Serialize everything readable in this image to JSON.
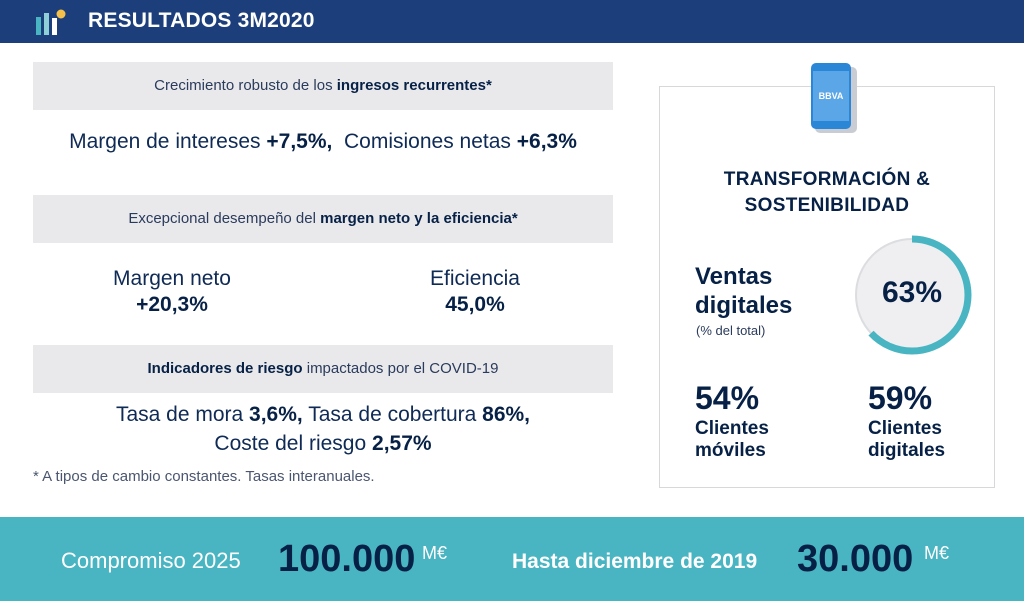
{
  "header": {
    "title": "RESULTADOS 3M2020"
  },
  "section1": {
    "band_prefix": "Crecimiento robusto de los ",
    "band_bold": "ingresos recurrentes*",
    "margin_label": "Margen de intereses ",
    "margin_value": "+7,5%,",
    "fees_label": "Comisiones netas ",
    "fees_value": "+6,3%"
  },
  "section2": {
    "band_prefix": "Excepcional desempeño del ",
    "band_bold": "margen neto y la eficiencia*",
    "net_label": "Margen neto",
    "net_value": "+20,3%",
    "eff_label": "Eficiencia",
    "eff_value": "45,0%"
  },
  "section3": {
    "band_bold": "Indicadores de riesgo",
    "band_suffix": " impactados por el COVID-19",
    "npl_label": "Tasa de mora ",
    "npl_value": "3,6%,",
    "coverage_label": " Tasa de cobertura ",
    "coverage_value": "86%,",
    "cor_label": "Coste del riesgo ",
    "cor_value": "2,57%"
  },
  "footnote": "* A tipos de cambio constantes. Tasas interanuales.",
  "panel": {
    "phone_brand": "BBVA",
    "title_line1": "TRANSFORMACIÓN &",
    "title_line2": "SOSTENIBILIDAD",
    "ventas_line1": "Ventas",
    "ventas_line2": "digitales",
    "ventas_sub": "(% del total)",
    "ventas_value": "63%",
    "ventas_fraction": 0.63,
    "mobile_value": "54%",
    "mobile_line1": "Clientes",
    "mobile_line2": "móviles",
    "digital_value": "59%",
    "digital_line1": "Clientes",
    "digital_line2": "digitales"
  },
  "footer": {
    "commit_label": "Compromiso 2025",
    "commit_value": "100.000",
    "commit_unit": "M€",
    "until_label": "Hasta diciembre de  2019",
    "until_value": "30.000",
    "until_unit": "M€"
  },
  "colors": {
    "header_bg": "#1c3f7c",
    "footer_bg": "#49b5c2",
    "ring": "#49b5c2",
    "navy": "#072146"
  }
}
